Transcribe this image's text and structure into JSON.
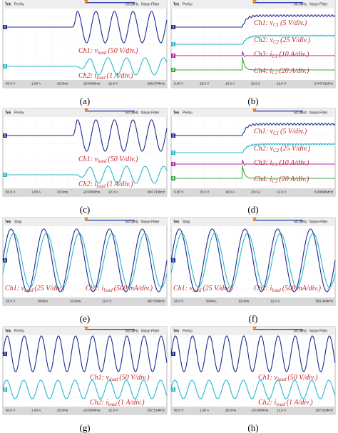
{
  "panels": [
    {
      "caption": "(a)",
      "header": {
        "brand": "Tek",
        "mode": "PreVu",
        "bandwidth": "60.0kHz",
        "filter": "Noise Filter"
      },
      "markers": [
        "1",
        "2"
      ],
      "annotations": [
        {
          "prefix": "Ch1: ",
          "var": "v",
          "sub": "load",
          "scale": "(50 V/div.)"
        },
        {
          "prefix": "Ch2: ",
          "var": "i",
          "sub": "load",
          "scale": "(1 A/div.)"
        }
      ],
      "readouts": [
        "50.0 V",
        "1.00 A",
        "20.0ms",
        "-20.0000ms",
        "12.0 V",
        "288.074kHz"
      ]
    },
    {
      "caption": "(b)",
      "header": {
        "brand": "Tek",
        "mode": "PreVu",
        "bandwidth": "60.0kHz",
        "filter": "Noise Filter"
      },
      "markers": [
        "1",
        "2",
        "3",
        "4"
      ],
      "annotations": [
        {
          "prefix": "Ch1: ",
          "var": "v",
          "sub": "C1",
          "scale": "(5 V/div.)"
        },
        {
          "prefix": "Ch2: ",
          "var": "v",
          "sub": "C2",
          "scale": "(25 V/div.)"
        },
        {
          "prefix": "Ch3: ",
          "var": "i",
          "sub": "C1",
          "scale": "(10 A/div.)"
        },
        {
          "prefix": "Ch4: ",
          "var": "i",
          "sub": "C2",
          "scale": "(20 A/div.)"
        }
      ],
      "readouts": [
        "5.00 V",
        "25.0 V",
        "10.0 A",
        "20.0 A",
        "12.0 V",
        "5.44731MHz"
      ]
    },
    {
      "caption": "(c)",
      "header": {
        "brand": "Tek",
        "mode": "PreVu",
        "bandwidth": "60.0kHz",
        "filter": "Noise Filter"
      },
      "markers": [
        "1",
        "2"
      ],
      "annotations": [
        {
          "prefix": "Ch1: ",
          "var": "v",
          "sub": "load",
          "scale": "(50 V/div.)"
        },
        {
          "prefix": "Ch2: ",
          "var": "i",
          "sub": "load",
          "scale": "(1 A/div.)"
        }
      ],
      "readouts": [
        "50.0 V",
        "1.00 A",
        "20.0ms",
        "-20.0000ms",
        "12.0 V",
        "264.713kHz"
      ]
    },
    {
      "caption": "(d)",
      "header": {
        "brand": "Tek",
        "mode": "PreVu",
        "bandwidth": "60.0kHz",
        "filter": "Noise Filter"
      },
      "markers": [
        "1",
        "2",
        "3",
        "4"
      ],
      "annotations": [
        {
          "prefix": "Ch1: ",
          "var": "v",
          "sub": "C1",
          "scale": "(5 V/div.)"
        },
        {
          "prefix": "Ch2: ",
          "var": "v",
          "sub": "C2",
          "scale": "(25 V/div.)"
        },
        {
          "prefix": "Ch3: ",
          "var": "i",
          "sub": "C1",
          "scale": "(10 A/div.)"
        },
        {
          "prefix": "Ch4: ",
          "var": "i",
          "sub": "C2",
          "scale": "(20 A/div.)"
        }
      ],
      "readouts": [
        "5.00 V",
        "25.0 V",
        "10.0 A",
        "20.0 A",
        "12.0 V",
        "6.09998MHz"
      ]
    },
    {
      "caption": "(e)",
      "header": {
        "brand": "Tek",
        "mode": "Stop",
        "bandwidth": "60.0kHz",
        "filter": "Noise Filter"
      },
      "markers": [
        "1"
      ],
      "annotations": [
        {
          "prefix": "Ch1: ",
          "var": "v",
          "sub": "load",
          "scale": "(25 V/div.)"
        },
        {
          "prefix": "Ch2: ",
          "var": "i",
          "sub": "load",
          "scale": "(500 mA/div.)"
        }
      ],
      "readouts": [
        "25.0 V",
        "500mA",
        "10.0ms",
        "12.0 V",
        "497.050kHz"
      ]
    },
    {
      "caption": "(f)",
      "header": {
        "brand": "Tek",
        "mode": "Stop",
        "bandwidth": "60.0kHz",
        "filter": "Noise Filter"
      },
      "markers": [
        "1"
      ],
      "annotations": [
        {
          "prefix": "Ch1: ",
          "var": "v",
          "sub": "load",
          "scale": "(25 V/div.)"
        },
        {
          "prefix": "Ch2: ",
          "var": "i",
          "sub": "load",
          "scale": "(500 mA/div.)"
        }
      ],
      "readouts": [
        "25.0 V",
        "500mA",
        "10.0ms",
        "12.0 V",
        "555.348kHz"
      ]
    },
    {
      "caption": "(g)",
      "header": {
        "brand": "Tek",
        "mode": "PreVu",
        "bandwidth": "60.0kHz",
        "filter": "Noise Filter"
      },
      "markers": [
        "1",
        "2"
      ],
      "annotations": [
        {
          "prefix": "Ch1: ",
          "var": "v",
          "sub": "load",
          "scale": "(50 V/div.)"
        },
        {
          "prefix": "Ch2: ",
          "var": "i",
          "sub": "load",
          "scale": "(1 A/div.)"
        }
      ],
      "readouts": [
        "50.0 V",
        "1.00 A",
        "20.0ms",
        "-20.0000ms",
        "12.0 V",
        "297.514kHz"
      ]
    },
    {
      "caption": "(h)",
      "header": {
        "brand": "Tek",
        "mode": "PreVu",
        "bandwidth": "60.0kHz",
        "filter": "Noise Filter"
      },
      "markers": [
        "1",
        "2"
      ],
      "annotations": [
        {
          "prefix": "Ch1: ",
          "var": "v",
          "sub": "load",
          "scale": "(50 V/div.)"
        },
        {
          "prefix": "Ch2: ",
          "var": "i",
          "sub": "load",
          "scale": "(1 A/div.)"
        }
      ],
      "readouts": [
        "50.0 V",
        "1.00 A",
        "20.0ms",
        "-20.0000ms",
        "12.0 V",
        "287.816kHz"
      ]
    }
  ]
}
